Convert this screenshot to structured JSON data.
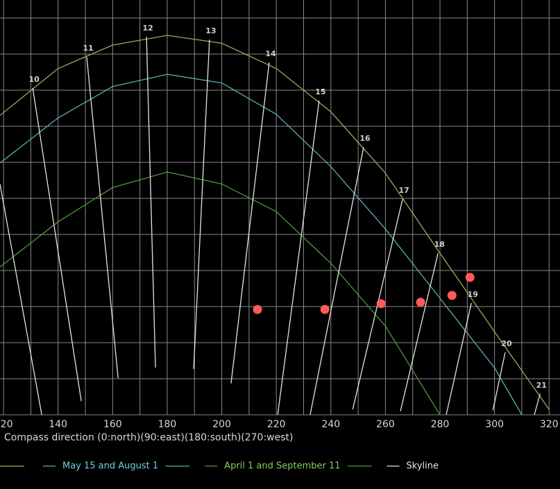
{
  "chart_data": {
    "type": "line",
    "x_label": "Compass direction (0:north)(90:east)(180:south)(270:west)",
    "xlim": [
      118.7,
      324
    ],
    "xticks": [
      120,
      140,
      160,
      180,
      200,
      220,
      240,
      260,
      280,
      300,
      320
    ],
    "xgrid_step": 10,
    "ylim": [
      0,
      115
    ],
    "yticks": [
      0,
      10,
      20,
      30,
      40,
      50,
      60,
      70,
      80,
      90,
      100,
      110
    ],
    "grid": true,
    "series": [
      {
        "color": "#a9a65e",
        "x": [
          118.7,
          140,
          160,
          180,
          200,
          220,
          240,
          260,
          280,
          300,
          320
        ],
        "values": [
          83,
          96,
          102.5,
          105.2,
          103,
          96,
          84,
          67,
          44.8,
          23,
          1.5
        ]
      },
      {
        "name": "May 15 and August 1",
        "color": "#5aafb8",
        "text_color": "#6fd0e0",
        "x": [
          118.7,
          140,
          160,
          180,
          200,
          220,
          240,
          260,
          280,
          300,
          310
        ],
        "values": [
          69.8,
          82.3,
          91,
          94.4,
          92,
          83.3,
          68.8,
          51.5,
          32.3,
          13,
          0
        ]
      },
      {
        "name": "April 1 and September 11",
        "color": "#4c9a3c",
        "text_color": "#7fd05c",
        "x": [
          118.7,
          140,
          160,
          180,
          200,
          220,
          240,
          260,
          280
        ],
        "values": [
          41,
          53.5,
          63,
          67.3,
          64,
          56.3,
          42,
          24.6,
          0
        ]
      },
      {
        "name": "Skyline",
        "color": "#e6e6e6",
        "text_color": "#e6e6e6",
        "x": [],
        "values": []
      }
    ],
    "points": {
      "color": "#ff5a5a",
      "x": [
        213.1,
        237.8,
        258.4,
        272.9,
        284.4,
        291.0
      ],
      "values": [
        29.2,
        29.2,
        30.8,
        31.2,
        33.1,
        38.1
      ]
    },
    "hour_lines": [
      {
        "label": null,
        "x": [
          118.7,
          134.0
        ],
        "y": [
          64.0,
          0
        ]
      },
      {
        "label": "10",
        "x": [
          130.7,
          148.5
        ],
        "y": [
          90.6,
          3.8
        ]
      },
      {
        "label": "11",
        "x": [
          150.5,
          162.0
        ],
        "y": [
          99.2,
          10.2
        ]
      },
      {
        "label": "12",
        "x": [
          172.4,
          175.7
        ],
        "y": [
          104.8,
          13.1
        ]
      },
      {
        "label": "13",
        "x": [
          195.5,
          189.7
        ],
        "y": [
          104.0,
          12.7
        ]
      },
      {
        "label": "14",
        "x": [
          217.4,
          203.4
        ],
        "y": [
          97.7,
          8.7
        ]
      },
      {
        "label": "15",
        "x": [
          235.7,
          220.5
        ],
        "y": [
          87.1,
          0
        ]
      },
      {
        "label": "16",
        "x": [
          252.0,
          232.4
        ],
        "y": [
          74.2,
          0
        ]
      },
      {
        "label": "17",
        "x": [
          266.3,
          248.0
        ],
        "y": [
          59.8,
          1.5
        ]
      },
      {
        "label": "18",
        "x": [
          279.3,
          265.5
        ],
        "y": [
          44.8,
          1.0
        ]
      },
      {
        "label": "19",
        "x": [
          291.5,
          282.3
        ],
        "y": [
          31.0,
          0
        ]
      },
      {
        "label": "20",
        "x": [
          303.9,
          299.4
        ],
        "y": [
          17.3,
          1.2
        ]
      },
      {
        "label": "21",
        "x": [
          316.7,
          314.6
        ],
        "y": [
          5.8,
          0
        ]
      }
    ]
  }
}
